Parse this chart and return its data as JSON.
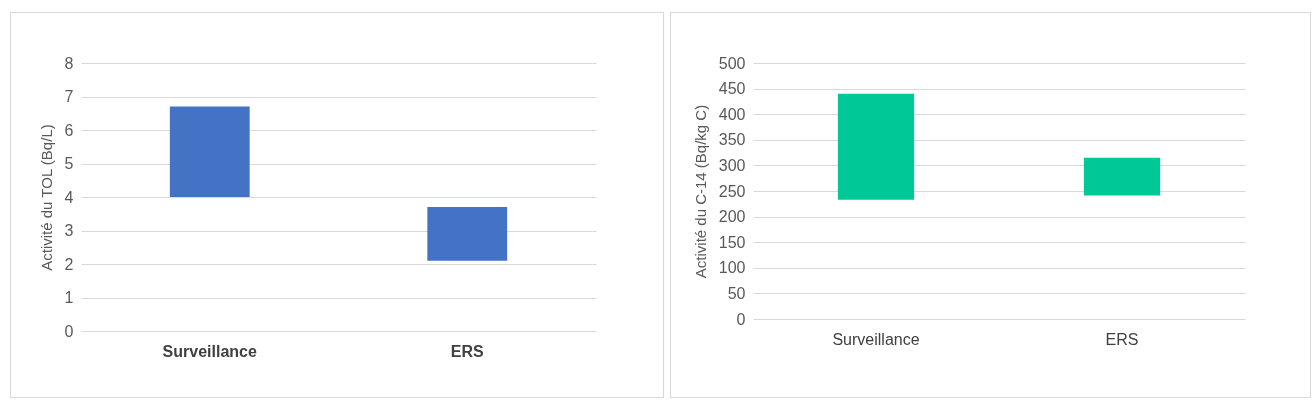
{
  "chart_data": [
    {
      "type": "bar",
      "ylabel": "Activité du TOL (Bq/L)",
      "categories": [
        "Surveillance",
        "ERS"
      ],
      "base": [
        4.0,
        2.1
      ],
      "values": [
        2.7,
        1.6
      ],
      "color": "#4472c4",
      "ylim": [
        0,
        8
      ],
      "yticks": [
        0,
        1,
        2,
        3,
        4,
        5,
        6,
        7,
        8
      ],
      "grid": "y"
    },
    {
      "type": "bar",
      "ylabel": "Activité du C-14 (Bq/kg C)",
      "categories": [
        "Surveillance",
        "ERS"
      ],
      "base": [
        233,
        241
      ],
      "values": [
        207,
        74
      ],
      "color": "#00c896",
      "ylim": [
        0,
        500
      ],
      "yticks": [
        0,
        50,
        100,
        150,
        200,
        250,
        300,
        350,
        400,
        450,
        500
      ],
      "grid": "y"
    }
  ]
}
